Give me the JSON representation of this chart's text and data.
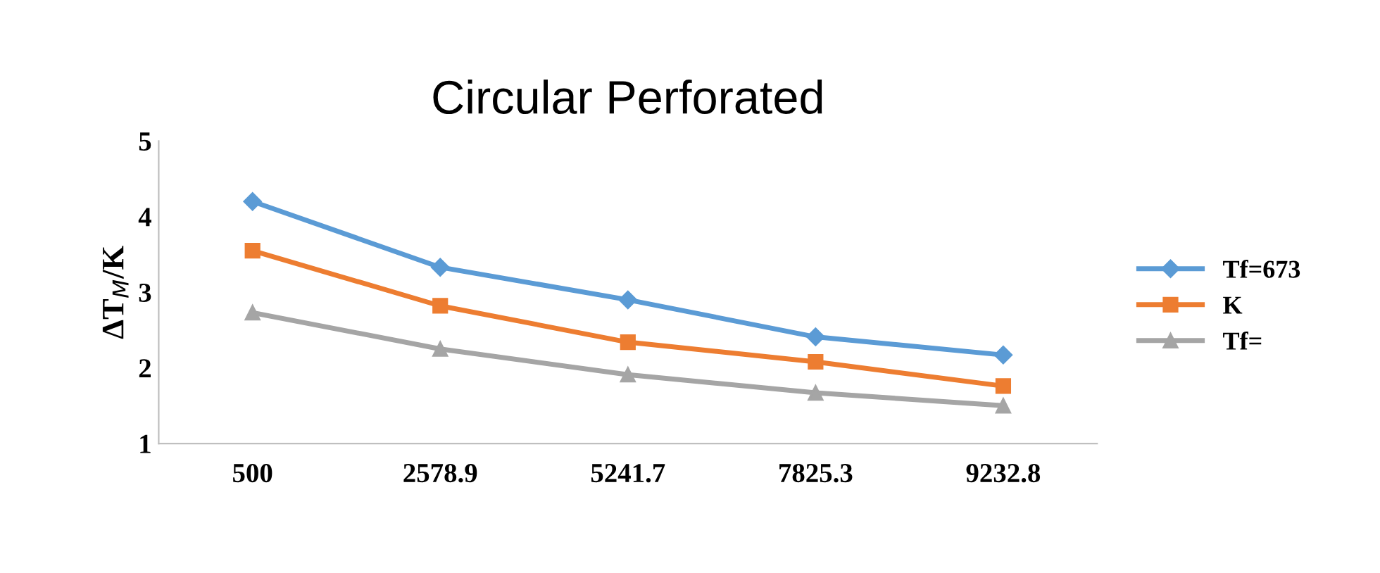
{
  "chart_data": {
    "type": "line",
    "title": "Circular Perforated",
    "ylabel": "ΔT$_{M}$/K",
    "categories": [
      "500",
      "2578.9",
      "5241.7",
      "7825.3",
      "9232.8"
    ],
    "series": [
      {
        "name": "Tf=673",
        "color": "#5b9bd5",
        "values": [
          4.2,
          3.33,
          2.9,
          2.41,
          2.17
        ],
        "marker": "diamond"
      },
      {
        "name": "K",
        "color": "#ed7d31",
        "values": [
          3.55,
          2.82,
          2.34,
          2.08,
          1.76
        ],
        "marker": "square"
      },
      {
        "name": "Tf=",
        "color": "#a5a5a5",
        "values": [
          2.73,
          2.25,
          1.91,
          1.67,
          1.5
        ],
        "marker": "triangle"
      }
    ],
    "ylim": [
      1,
      5
    ],
    "yticks": [
      1,
      2,
      3,
      4,
      5
    ],
    "grid": false,
    "legend": "right",
    "line_style": "solid"
  }
}
